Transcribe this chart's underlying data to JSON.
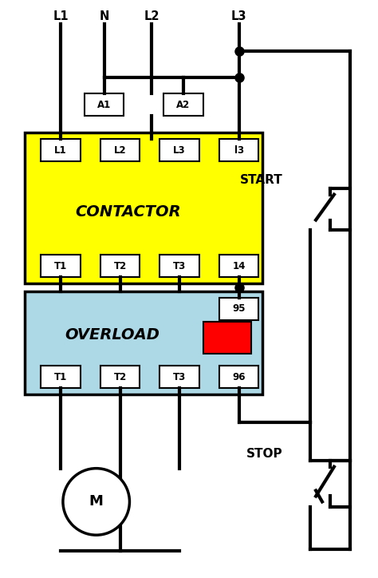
{
  "bg_color": "#ffffff",
  "contactor_color": "#FFFF00",
  "overload_color": "#ADD8E6",
  "terminal_color": "#ffffff",
  "wire_color": "#000000",
  "line_width": 3.0,
  "contactor_label": "CONTACTOR",
  "overload_label": "OVERLOAD",
  "start_label": "START",
  "stop_label": "STOP",
  "motor_label": "M",
  "red_rect_color": "#FF0000",
  "figsize": [
    4.74,
    7.24
  ],
  "dpi": 100
}
